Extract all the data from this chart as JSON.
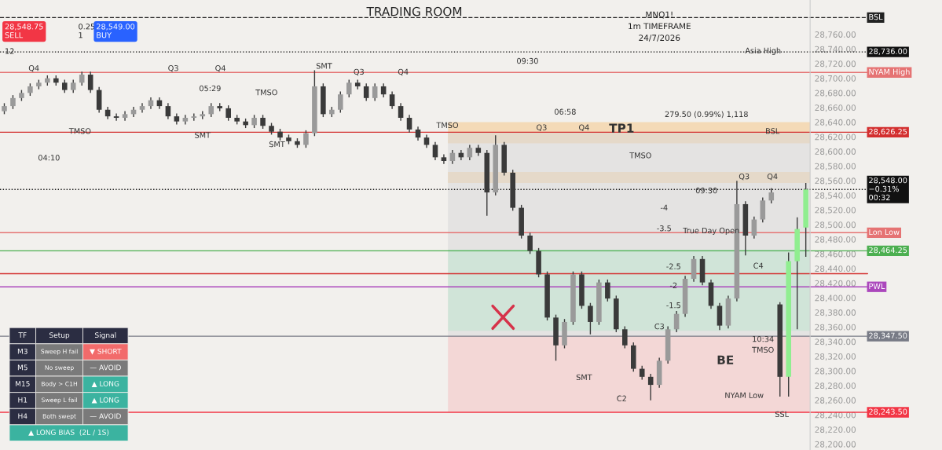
{
  "chart_data": {
    "type": "candlestick",
    "title": "TRADING ROOM",
    "subtitle": "MNQ1!\n1m TIMEFRAME\n24/7/2026",
    "categories": [
      null,
      null,
      null,
      null,
      null,
      null,
      null,
      null,
      null,
      null,
      null,
      null,
      null,
      null,
      null,
      null,
      null,
      null,
      null,
      null,
      null,
      null,
      null,
      null,
      null,
      null,
      null,
      null,
      null,
      null,
      null,
      null,
      null,
      null,
      null,
      null,
      null,
      null,
      null,
      null,
      null,
      null,
      null,
      null,
      null,
      null,
      null,
      null,
      null,
      null,
      null,
      null,
      null,
      null,
      null,
      null,
      null,
      null,
      null,
      null,
      null,
      null,
      null,
      null,
      null,
      null,
      null,
      null,
      null,
      null,
      null,
      null,
      null,
      null,
      null,
      null,
      null,
      null,
      null,
      null,
      null,
      null,
      null,
      null,
      null,
      null,
      null,
      null,
      null,
      null,
      null,
      null,
      null,
      null
    ],
    "ohlc": [
      [
        28655,
        28666,
        28651,
        28662
      ],
      [
        28662,
        28677,
        28658,
        28673
      ],
      [
        28673,
        28684,
        28669,
        28680
      ],
      [
        28680,
        28693,
        28676,
        28689
      ],
      [
        28689,
        28698,
        28685,
        28694
      ],
      [
        28694,
        28704,
        28690,
        28700
      ],
      [
        28700,
        28704,
        28690,
        28694
      ],
      [
        28694,
        28698,
        28680,
        28684
      ],
      [
        28684,
        28698,
        28680,
        28694
      ],
      [
        28694,
        28709,
        28690,
        28705
      ],
      [
        28705,
        28709,
        28680,
        28684
      ],
      [
        28684,
        28688,
        28653,
        28657
      ],
      [
        28657,
        28661,
        28644,
        28648
      ],
      [
        28648,
        28652,
        28642,
        28646
      ],
      [
        28646,
        28655,
        28642,
        28651
      ],
      [
        28651,
        28661,
        28647,
        28657
      ],
      [
        28657,
        28666,
        28653,
        28662
      ],
      [
        28662,
        28674,
        28658,
        28670
      ],
      [
        28670,
        28674,
        28658,
        28662
      ],
      [
        28662,
        28666,
        28644,
        28648
      ],
      [
        28648,
        28652,
        28637,
        28641
      ],
      [
        28641,
        28650,
        28637,
        28646
      ],
      [
        28646,
        28652,
        28642,
        28648
      ],
      [
        28648,
        28655,
        28644,
        28651
      ],
      [
        28651,
        28666,
        28647,
        28662
      ],
      [
        28662,
        28666,
        28655,
        28659
      ],
      [
        28659,
        28663,
        28642,
        28646
      ],
      [
        28646,
        28650,
        28637,
        28641
      ],
      [
        28641,
        28645,
        28632,
        28636
      ],
      [
        28636,
        28650,
        28632,
        28646
      ],
      [
        28646,
        28650,
        28631,
        28635
      ],
      [
        28635,
        28639,
        28623,
        28627
      ],
      [
        28627,
        28631,
        28615,
        28619
      ],
      [
        28619,
        28623,
        28610,
        28614
      ],
      [
        28614,
        28618,
        28605,
        28609
      ],
      [
        28609,
        28629,
        28605,
        28625
      ],
      [
        28625,
        28711,
        28621,
        28689
      ],
      [
        28689,
        28693,
        28647,
        28651
      ],
      [
        28651,
        28661,
        28647,
        28657
      ],
      [
        28657,
        28682,
        28653,
        28678
      ],
      [
        28678,
        28698,
        28674,
        28694
      ],
      [
        28694,
        28698,
        28685,
        28689
      ],
      [
        28689,
        28693,
        28669,
        28673
      ],
      [
        28673,
        28693,
        28669,
        28689
      ],
      [
        28689,
        28693,
        28674,
        28678
      ],
      [
        28678,
        28682,
        28658,
        28662
      ],
      [
        28662,
        28666,
        28642,
        28646
      ],
      [
        28646,
        28650,
        28626,
        28630
      ],
      [
        28630,
        28634,
        28615,
        28619
      ],
      [
        28619,
        28623,
        28605,
        28609
      ],
      [
        28609,
        28613,
        28588,
        28592
      ],
      [
        28592,
        28596,
        28583,
        28587
      ],
      [
        28587,
        28602,
        28583,
        28598
      ],
      [
        28598,
        28602,
        28588,
        28592
      ],
      [
        28592,
        28609,
        28588,
        28605
      ],
      [
        28605,
        28609,
        28594,
        28598
      ],
      [
        28598,
        28602,
        28512,
        28544
      ],
      [
        28544,
        28622,
        28540,
        28609
      ],
      [
        28609,
        28613,
        28567,
        28571
      ],
      [
        28571,
        28575,
        28519,
        28523
      ],
      [
        28523,
        28527,
        28481,
        28485
      ],
      [
        28485,
        28489,
        28460,
        28464
      ],
      [
        28464,
        28468,
        28428,
        28432
      ],
      [
        28432,
        28436,
        28369,
        28373
      ],
      [
        28373,
        28377,
        28314,
        28335
      ],
      [
        28335,
        28371,
        28331,
        28367
      ],
      [
        28367,
        28436,
        28363,
        28432
      ],
      [
        28432,
        28436,
        28385,
        28389
      ],
      [
        28389,
        28393,
        28350,
        28367
      ],
      [
        28367,
        28425,
        28363,
        28421
      ],
      [
        28421,
        28425,
        28395,
        28399
      ],
      [
        28399,
        28403,
        28353,
        28357
      ],
      [
        28357,
        28361,
        28331,
        28335
      ],
      [
        28335,
        28339,
        28299,
        28303
      ],
      [
        28303,
        28307,
        28288,
        28292
      ],
      [
        28292,
        28296,
        28260,
        28281
      ],
      [
        28281,
        28318,
        28277,
        28314
      ],
      [
        28314,
        28361,
        28310,
        28357
      ],
      [
        28357,
        28382,
        28353,
        28378
      ],
      [
        28378,
        28430,
        28374,
        28426
      ],
      [
        28426,
        28457,
        28422,
        28453
      ],
      [
        28453,
        28457,
        28417,
        28421
      ],
      [
        28421,
        28425,
        28385,
        28389
      ],
      [
        28389,
        28393,
        28356,
        28362
      ],
      [
        28362,
        28403,
        28358,
        28399
      ],
      [
        28399,
        28560,
        28395,
        28528
      ],
      [
        28528,
        28532,
        28458,
        28485
      ],
      [
        28485,
        28511,
        28481,
        28507
      ],
      [
        28507,
        28537,
        28503,
        28533
      ],
      [
        28533,
        28550,
        28529,
        28544
      ],
      [
        28391,
        28394,
        28265,
        28292
      ],
      [
        28292,
        28462,
        28265,
        28450
      ],
      [
        28450,
        28510,
        28357,
        28494
      ],
      [
        28496,
        28557,
        28456,
        28548
      ]
    ],
    "colors": [
      "#9a9a9a",
      "#9a9a9a",
      "#9a9a9a",
      "#9a9a9a",
      "#9a9a9a",
      "#9a9a9a",
      "#3a3a3a",
      "#3a3a3a",
      "#9a9a9a",
      "#9a9a9a",
      "#3a3a3a",
      "#3a3a3a",
      "#3a3a3a",
      "#3a3a3a",
      "#9a9a9a",
      "#9a9a9a",
      "#9a9a9a",
      "#9a9a9a",
      "#3a3a3a",
      "#3a3a3a",
      "#3a3a3a",
      "#9a9a9a",
      "#9a9a9a",
      "#9a9a9a",
      "#9a9a9a",
      "#3a3a3a",
      "#3a3a3a",
      "#3a3a3a",
      "#3a3a3a",
      "#9a9a9a",
      "#3a3a3a",
      "#3a3a3a",
      "#3a3a3a",
      "#3a3a3a",
      "#3a3a3a",
      "#9a9a9a",
      "#9a9a9a",
      "#3a3a3a",
      "#9a9a9a",
      "#9a9a9a",
      "#9a9a9a",
      "#3a3a3a",
      "#3a3a3a",
      "#9a9a9a",
      "#3a3a3a",
      "#3a3a3a",
      "#3a3a3a",
      "#3a3a3a",
      "#3a3a3a",
      "#3a3a3a",
      "#3a3a3a",
      "#3a3a3a",
      "#9a9a9a",
      "#3a3a3a",
      "#9a9a9a",
      "#3a3a3a",
      "#3a3a3a",
      "#9a9a9a",
      "#3a3a3a",
      "#3a3a3a",
      "#3a3a3a",
      "#3a3a3a",
      "#3a3a3a",
      "#3a3a3a",
      "#3a3a3a",
      "#9a9a9a",
      "#9a9a9a",
      "#3a3a3a",
      "#3a3a3a",
      "#9a9a9a",
      "#3a3a3a",
      "#3a3a3a",
      "#3a3a3a",
      "#3a3a3a",
      "#3a3a3a",
      "#3a3a3a",
      "#9a9a9a",
      "#9a9a9a",
      "#9a9a9a",
      "#9a9a9a",
      "#9a9a9a",
      "#3a3a3a",
      "#3a3a3a",
      "#3a3a3a",
      "#9a9a9a",
      "#9a9a9a",
      "#3a3a3a",
      "#9a9a9a",
      "#9a9a9a",
      "#9a9a9a",
      "#3a3a3a",
      "#90ee90",
      "#90ee90",
      "#90ee90"
    ],
    "ylim": [
      28192,
      28807
    ],
    "yticks": [
      {
        "value": 28200,
        "label": "28,200.00"
      },
      {
        "value": 28220,
        "label": "28,220.00"
      },
      {
        "value": 28240,
        "label": "28,240.00"
      },
      {
        "value": 28260,
        "label": "28,260.00"
      },
      {
        "value": 28280,
        "label": "28,280.00"
      },
      {
        "value": 28300,
        "label": "28,300.00"
      },
      {
        "value": 28320,
        "label": "28,320.00"
      },
      {
        "value": 28340,
        "label": "28,340.00"
      },
      {
        "value": 28360,
        "label": "28,360.00"
      },
      {
        "value": 28380,
        "label": "28,380.00"
      },
      {
        "value": 28400,
        "label": "28,400.00"
      },
      {
        "value": 28420,
        "label": "28,420.00"
      },
      {
        "value": 28440,
        "label": "28,440.00"
      },
      {
        "value": 28460,
        "label": "28,460.00"
      },
      {
        "value": 28480,
        "label": "28,480.00"
      },
      {
        "value": 28500,
        "label": "28,500.00"
      },
      {
        "value": 28520,
        "label": "28,520.00"
      },
      {
        "value": 28540,
        "label": "28,540.00"
      },
      {
        "value": 28560,
        "label": "28,560.00"
      },
      {
        "value": 28580,
        "label": "28,580.00"
      },
      {
        "value": 28600,
        "label": "28,600.00"
      },
      {
        "value": 28620,
        "label": "28,620.00"
      },
      {
        "value": 28640,
        "label": "28,640.00"
      },
      {
        "value": 28660,
        "label": "28,660.00"
      },
      {
        "value": 28680,
        "label": "28,680.00"
      },
      {
        "value": 28700,
        "label": "28,700.00"
      },
      {
        "value": 28720,
        "label": "28,720.00"
      },
      {
        "value": 28740,
        "label": "28,740.00"
      },
      {
        "value": 28760,
        "label": "28,760.00"
      }
    ],
    "tick_labels": "y",
    "grid": false,
    "legend": false,
    "ref_lines": [
      {
        "axis": "y",
        "value": 28783,
        "label": "BSL",
        "color": "#222222",
        "line_style": "dashed"
      },
      {
        "axis": "y",
        "value": 28736,
        "label": "28,736.00",
        "color": "#111111",
        "line_style": "dotted"
      },
      {
        "axis": "y",
        "value": 28708,
        "label": "NYAM High",
        "color": "#e57373",
        "line_style": "solid"
      },
      {
        "axis": "y",
        "value": 28626.25,
        "label": "28,626.25",
        "color": "#d32f2f",
        "line_style": "solid"
      },
      {
        "axis": "y",
        "value": 28548,
        "label": "28,548.00\n−0.31%\n00:32",
        "color": "#111111",
        "line_style": "dotted"
      },
      {
        "axis": "y",
        "value": 28489,
        "label": "Lon Low",
        "color": "#e57373",
        "line_style": "solid"
      },
      {
        "axis": "y",
        "value": 28464.25,
        "label": "28,464.25",
        "color": "#4caf50",
        "line_style": "solid"
      },
      {
        "axis": "y",
        "value": 28433,
        "color": "#d32f2f",
        "line_style": "solid"
      },
      {
        "axis": "y",
        "value": 28415,
        "label": "PWL",
        "color": "#ab47bc",
        "line_style": "solid"
      },
      {
        "axis": "y",
        "value": 28347.5,
        "label": "28,347.50",
        "color": "#787b86",
        "line_style": "solid"
      },
      {
        "axis": "y",
        "value": 28243.5,
        "label": "28,243.50",
        "color": "#f23645",
        "line_style": "solid"
      }
    ],
    "bands": [
      {
        "axis": "y",
        "from": 28611,
        "to": 28640,
        "color": "#f5c98a"
      },
      {
        "axis": "y",
        "from": 28557,
        "to": 28572,
        "color": "#f5c98a"
      },
      {
        "axis": "y",
        "from": 28347.5,
        "to": 28626.25,
        "color": "#d8d8d8"
      },
      {
        "axis": "y",
        "from": 28355,
        "to": 28466,
        "color": "#bfe6cf"
      },
      {
        "axis": "y",
        "from": 28243.5,
        "to": 28347.5,
        "color": "#f4c2c2"
      }
    ],
    "annotations": [
      "28,548.75\nSELL",
      "0.25\n1",
      "28,549.00\nBUY",
      "12",
      "TF",
      "Setup",
      "Signal",
      "M3",
      "Sweep H fail",
      "▼ SHORT",
      "M5",
      "No sweep",
      "— AVOID",
      "M15",
      "Body > C1H",
      "▲ LONG",
      "H1",
      "Sweep L fail",
      "▲ LONG",
      "H4",
      "Both swept",
      "— AVOID",
      "▲ LONG BIAS  (2L / 1S)",
      {
        "text": "Q4",
        "y": 28708
      },
      {
        "text": "TMSO",
        "y": 28622
      },
      "04:10",
      "05:29",
      "TMSO",
      {
        "text": "Q3",
        "y": 28708
      },
      {
        "text": "Q4",
        "y": 28708
      },
      "SMT",
      "SMT",
      {
        "text": "SMT",
        "y": 28711
      },
      {
        "text": "Q3",
        "y": 28703
      },
      {
        "text": "Q4",
        "y": 28703
      },
      "09:30",
      {
        "text": "TMSO",
        "y": 28630
      },
      "06:58",
      {
        "text": "Q3",
        "y": 28627
      },
      {
        "text": "Q4",
        "y": 28627
      },
      "Asia High",
      "TMSO",
      "SMT",
      "-4",
      {
        "text": "-3.5",
        "y": 28489
      },
      {
        "text": "-2.5",
        "y": 28437
      },
      {
        "text": "-2",
        "y": 28411
      },
      "-1.5",
      {
        "text": "C3",
        "y": 28355
      },
      "C2",
      "C4",
      {
        "text": "Q3",
        "y": 28560
      },
      "09:30",
      {
        "text": "Q4",
        "y": 28560
      },
      {
        "text": "279.50 (0.99%) 1,118",
        "y": 28645
      },
      {
        "text": "BSL",
        "y": 28622
      },
      {
        "text": "True Day Open",
        "y": 28486
      },
      "10:34",
      "TMSO",
      "BE",
      "NYAM Low",
      "SSL",
      "TP1"
    ]
  }
}
